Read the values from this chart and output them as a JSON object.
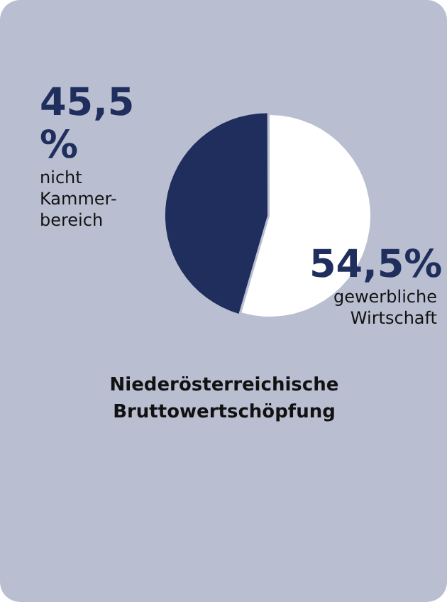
{
  "chart_data": {
    "type": "pie",
    "title": "Niederösterreichische Bruttowertschöpfung",
    "categories": [
      "gewerbliche Wirtschaft",
      "nicht Kammer-bereich"
    ],
    "values": [
      54.5,
      45.5
    ],
    "colors": [
      "#ffffff",
      "#1f2e5c"
    ],
    "value_labels": [
      "54,5%",
      "45,5 %"
    ]
  }
}
